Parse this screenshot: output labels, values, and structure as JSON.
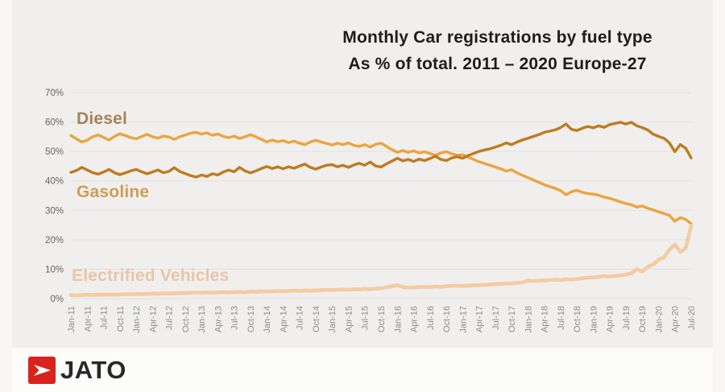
{
  "title": {
    "line1": "Monthly Car registrations by fuel type",
    "line2": "As % of total. 2011 – 2020 Europe-27"
  },
  "chart_data": {
    "type": "line",
    "title": "Monthly Car registrations by fuel type",
    "subtitle": "As % of total. 2011 – 2020 Europe-27",
    "xlabel": "",
    "ylabel": "",
    "ylim": [
      0,
      70
    ],
    "grid": true,
    "legend_position": "inline-labels",
    "y_ticks": [
      "0%",
      "10%",
      "20%",
      "30%",
      "40%",
      "50%",
      "60%",
      "70%"
    ],
    "x_tick_labels": [
      "Jan-11",
      "Apr-11",
      "Jul-11",
      "Oct-11",
      "Jan-12",
      "Apr-12",
      "Jul-12",
      "Oct-12",
      "Jan-13",
      "Apr-13",
      "Jul-13",
      "Oct-13",
      "Jan-14",
      "Apr-14",
      "Jul-14",
      "Oct-14",
      "Jan-15",
      "Apr-15",
      "Jul-15",
      "Oct-15",
      "Jan-16",
      "Apr-16",
      "Jul-16",
      "Oct-16",
      "Jan-17",
      "Apr-17",
      "Jul-17",
      "Oct-17",
      "Jan-18",
      "Apr-18",
      "Jul-18",
      "Oct-18",
      "Jan-19",
      "Apr-19",
      "Jul-19",
      "Oct-19",
      "Jan-20",
      "Apr-20",
      "Jul-20"
    ],
    "tick_every_n_points": 3,
    "x_unit": "month",
    "series": [
      {
        "name": "Diesel",
        "color": "#EBA43E",
        "label_color": "#A5835C",
        "values": [
          55.4,
          54.3,
          53.2,
          53.8,
          55.0,
          55.6,
          54.8,
          53.9,
          55.1,
          56.0,
          55.4,
          54.7,
          54.3,
          55.1,
          55.8,
          55.0,
          54.5,
          55.2,
          54.9,
          54.1,
          55.0,
          55.6,
          56.2,
          56.5,
          55.9,
          56.3,
          55.5,
          55.9,
          55.1,
          54.7,
          55.2,
          54.4,
          55.0,
          55.7,
          55.0,
          54.1,
          53.2,
          53.9,
          53.3,
          53.7,
          53.0,
          53.5,
          52.8,
          52.3,
          53.2,
          53.8,
          53.2,
          52.7,
          52.2,
          52.8,
          52.3,
          52.9,
          52.1,
          51.7,
          52.3,
          51.5,
          52.4,
          52.8,
          51.7,
          50.6,
          49.7,
          50.3,
          49.7,
          50.2,
          49.5,
          49.9,
          49.3,
          48.7,
          49.5,
          49.9,
          49.2,
          48.7,
          48.9,
          48.1,
          47.3,
          46.5,
          45.9,
          45.3,
          44.7,
          44.1,
          43.3,
          43.8,
          42.7,
          41.9,
          41.1,
          40.3,
          39.5,
          38.7,
          38.1,
          37.5,
          36.7,
          35.3,
          36.3,
          36.8,
          36.1,
          35.7,
          35.5,
          35.1,
          34.5,
          34.1,
          33.5,
          32.9,
          32.3,
          31.9,
          31.1,
          31.5,
          30.7,
          30.1,
          29.5,
          28.9,
          28.3,
          26.3,
          27.5,
          26.9,
          25.4
        ]
      },
      {
        "name": "Gasoline",
        "color": "#BD7B1F",
        "label_color": "#D09C55",
        "values": [
          42.9,
          43.5,
          44.6,
          43.7,
          42.8,
          42.3,
          43.0,
          43.9,
          42.8,
          42.1,
          42.7,
          43.4,
          43.9,
          43.1,
          42.4,
          43.0,
          43.7,
          42.8,
          43.2,
          44.5,
          43.2,
          42.5,
          41.8,
          41.3,
          42.0,
          41.5,
          42.4,
          42.0,
          43.0,
          43.7,
          43.1,
          44.6,
          43.4,
          42.7,
          43.4,
          44.2,
          44.9,
          44.2,
          44.8,
          44.1,
          44.8,
          44.3,
          45.0,
          45.7,
          44.6,
          44.0,
          44.7,
          45.3,
          45.5,
          44.8,
          45.3,
          44.6,
          45.4,
          46.0,
          45.3,
          46.4,
          45.1,
          44.7,
          45.8,
          46.7,
          47.7,
          46.8,
          47.3,
          46.6,
          47.4,
          46.9,
          47.6,
          48.4,
          47.3,
          46.9,
          47.8,
          48.2,
          47.7,
          48.6,
          49.3,
          50.0,
          50.5,
          50.9,
          51.5,
          52.1,
          52.9,
          52.3,
          53.2,
          53.9,
          54.5,
          55.1,
          55.7,
          56.5,
          56.9,
          57.3,
          58.1,
          59.3,
          57.5,
          57.1,
          57.9,
          58.5,
          58.0,
          58.7,
          58.2,
          59.1,
          59.5,
          59.9,
          59.3,
          59.9,
          58.7,
          58.1,
          57.3,
          55.9,
          55.1,
          54.5,
          52.9,
          49.9,
          52.3,
          51.1,
          47.8
        ]
      },
      {
        "name": "Electrified Vehicles",
        "color": "#F4CBA3",
        "label_color": "#E7C6A7",
        "values": [
          1.2,
          1.1,
          1.2,
          1.3,
          1.2,
          1.3,
          1.3,
          1.4,
          1.3,
          1.4,
          1.5,
          1.5,
          1.6,
          1.5,
          1.6,
          1.7,
          1.6,
          1.8,
          1.7,
          1.8,
          1.9,
          1.9,
          2.0,
          2.1,
          2.0,
          2.1,
          2.0,
          2.1,
          2.2,
          2.1,
          2.2,
          2.3,
          2.2,
          2.4,
          2.3,
          2.5,
          2.4,
          2.5,
          2.6,
          2.5,
          2.6,
          2.7,
          2.6,
          2.8,
          2.7,
          2.8,
          2.9,
          3.0,
          2.9,
          3.0,
          3.1,
          3.0,
          3.2,
          3.1,
          3.3,
          3.2,
          3.4,
          3.5,
          3.8,
          4.2,
          4.6,
          3.9,
          3.7,
          3.8,
          3.9,
          4.0,
          3.9,
          4.1,
          4.0,
          4.2,
          4.3,
          4.4,
          4.3,
          4.4,
          4.5,
          4.6,
          4.7,
          4.8,
          4.9,
          5.0,
          5.2,
          5.1,
          5.3,
          5.5,
          6.2,
          6.0,
          6.1,
          6.2,
          6.3,
          6.4,
          6.3,
          6.6,
          6.5,
          6.7,
          6.9,
          7.1,
          7.2,
          7.4,
          7.6,
          7.5,
          7.7,
          7.9,
          8.2,
          8.6,
          10.0,
          9.2,
          10.8,
          11.6,
          13.2,
          14.0,
          16.6,
          18.4,
          15.8,
          17.2,
          24.8
        ]
      }
    ],
    "colors": {
      "panel_background": "#f1efee",
      "gridline": "#e3e1df",
      "y_tick_text": "#646464",
      "x_tick_text": "#8d8d8d",
      "title_text": "#1d1d1d"
    }
  },
  "footer": {
    "brand": "JATO",
    "logo_color": "#D8241C",
    "brand_text_color": "#28282a"
  }
}
